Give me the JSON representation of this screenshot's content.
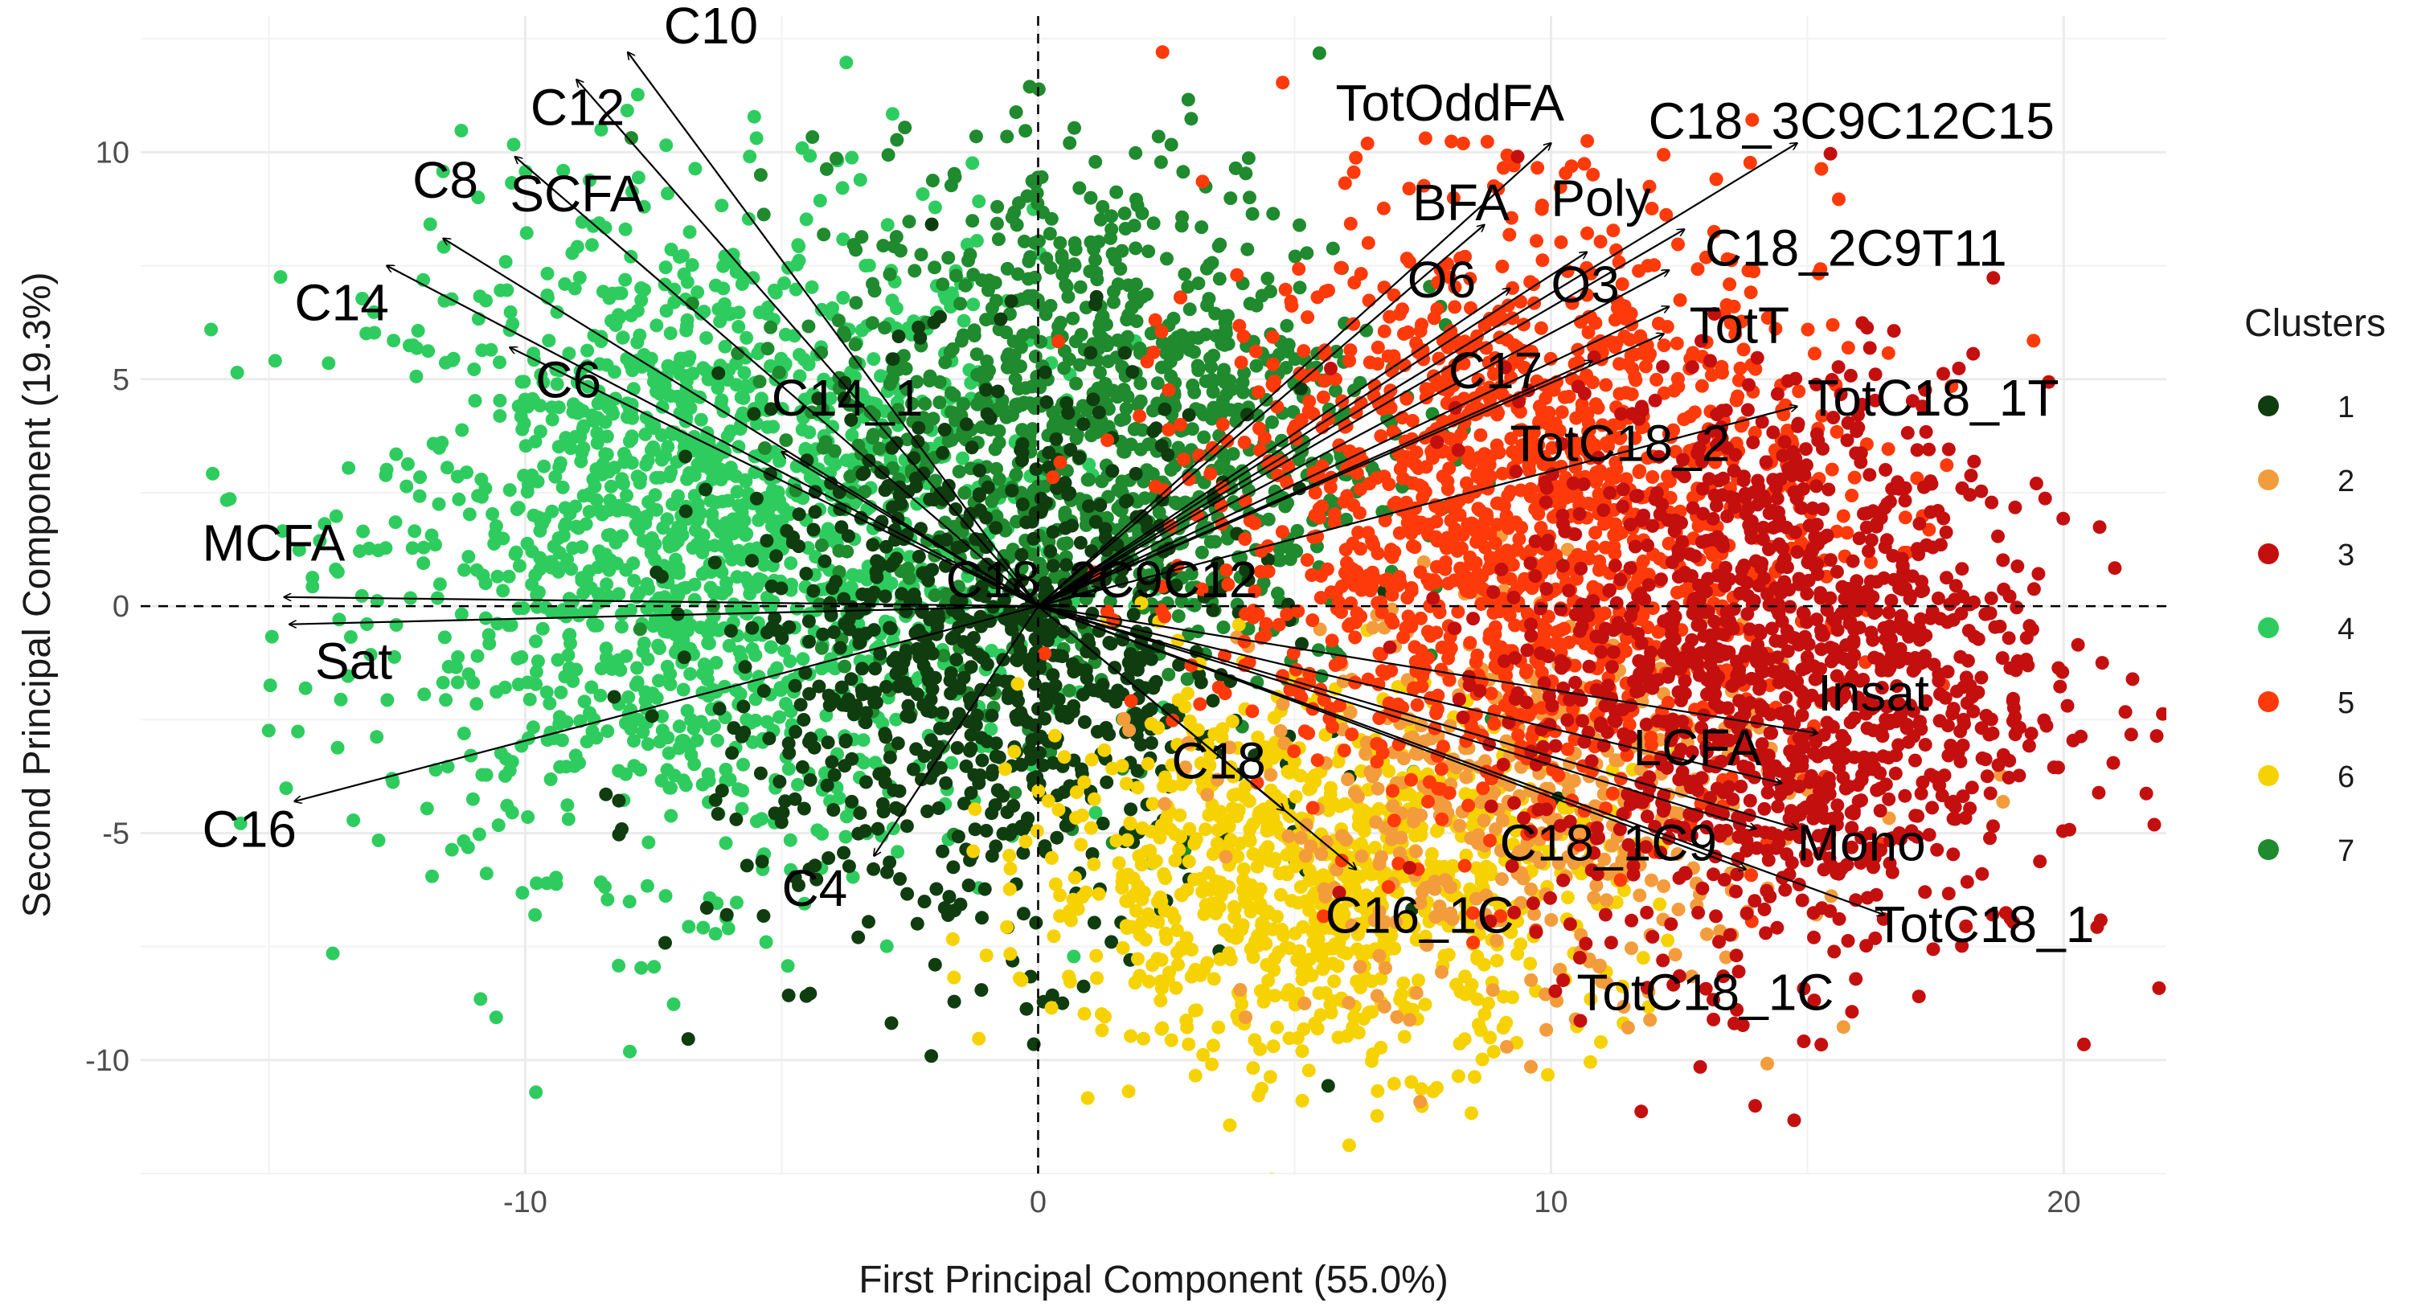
{
  "chart_data": {
    "type": "scatter",
    "subtype": "pca-biplot",
    "xlabel": "First Principal Component (55.0%)",
    "ylabel": "Second Principal Component (19.3%)",
    "xlim": [
      -17.5,
      22
    ],
    "ylim": [
      -12.5,
      13
    ],
    "xticks": [
      -10,
      0,
      10,
      20
    ],
    "yticks": [
      -10,
      -5,
      0,
      5,
      10
    ],
    "xtick_labels": [
      "-10",
      "0",
      "10",
      "20"
    ],
    "ytick_labels": [
      "-10",
      "-5",
      "0",
      "5",
      "10"
    ],
    "reference_lines": {
      "x": 0,
      "y": 0,
      "style": "dashed"
    },
    "legend": {
      "title": "Clusters",
      "position": "right",
      "entries": [
        {
          "label": "1",
          "color": "#0f3d0f"
        },
        {
          "label": "2",
          "color": "#f39c3c"
        },
        {
          "label": "3",
          "color": "#c40f0f"
        },
        {
          "label": "4",
          "color": "#2ecc5e"
        },
        {
          "label": "5",
          "color": "#ff3a0a"
        },
        {
          "label": "6",
          "color": "#f5d200"
        },
        {
          "label": "7",
          "color": "#1f8a2e"
        }
      ]
    },
    "cluster_regions": [
      {
        "cluster": "4",
        "cx": -6.5,
        "cy": 1.5,
        "sx": 3.2,
        "sy": 3.6,
        "n": 1600
      },
      {
        "cluster": "7",
        "cx": 1.2,
        "cy": 4.0,
        "sx": 2.7,
        "sy": 3.0,
        "n": 1100
      },
      {
        "cluster": "1",
        "cx": -1.0,
        "cy": -1.5,
        "sx": 2.6,
        "sy": 3.0,
        "n": 850
      },
      {
        "cluster": "6",
        "cx": 5.5,
        "cy": -6.0,
        "sx": 2.8,
        "sy": 2.0,
        "n": 950
      },
      {
        "cluster": "2",
        "cx": 9.5,
        "cy": -4.5,
        "sx": 2.6,
        "sy": 2.3,
        "n": 450
      },
      {
        "cluster": "5",
        "cx": 9.5,
        "cy": 2.0,
        "sx": 3.0,
        "sy": 3.2,
        "n": 1500
      },
      {
        "cluster": "3",
        "cx": 14.5,
        "cy": -1.5,
        "sx": 2.6,
        "sy": 3.2,
        "n": 1300
      }
    ],
    "loadings": [
      {
        "name": "C10",
        "x": -8.0,
        "y": 12.2,
        "lx": -7.3,
        "ly": 12.4
      },
      {
        "name": "C12",
        "x": -9.0,
        "y": 11.6,
        "lx": -9.9,
        "ly": 10.6
      },
      {
        "name": "C8",
        "x": -10.2,
        "y": 9.9,
        "lx": -12.2,
        "ly": 9.0
      },
      {
        "name": "SCFA",
        "x": -11.6,
        "y": 8.1,
        "lx": -10.3,
        "ly": 8.7
      },
      {
        "name": "C14",
        "x": -12.7,
        "y": 7.5,
        "lx": -14.5,
        "ly": 6.3
      },
      {
        "name": "C6",
        "x": -10.3,
        "y": 5.7,
        "lx": -9.8,
        "ly": 4.6
      },
      {
        "name": "C14_1",
        "x": -5.0,
        "y": 3.4,
        "lx": -5.2,
        "ly": 4.2
      },
      {
        "name": "MCFA",
        "x": -14.7,
        "y": 0.2,
        "lx": -16.3,
        "ly": 1.0
      },
      {
        "name": "Sat",
        "x": -14.6,
        "y": -0.4,
        "lx": -14.1,
        "ly": -1.6
      },
      {
        "name": "C16",
        "x": -14.5,
        "y": -4.3,
        "lx": -16.3,
        "ly": -5.3
      },
      {
        "name": "C4",
        "x": -3.2,
        "y": -5.5,
        "lx": -5.0,
        "ly": -6.6
      },
      {
        "name": "C18_2C9C12",
        "x": 1.2,
        "y": 0.4,
        "lx": -1.8,
        "ly": 0.2
      },
      {
        "name": "C18",
        "x": 4.8,
        "y": -4.5,
        "lx": 2.6,
        "ly": -3.8
      },
      {
        "name": "C16_1C",
        "x": 6.2,
        "y": -5.8,
        "lx": 5.6,
        "ly": -7.2
      },
      {
        "name": "TotOddFA",
        "x": 10.0,
        "y": 10.2,
        "lx": 5.8,
        "ly": 10.7
      },
      {
        "name": "BFA",
        "x": 8.7,
        "y": 8.4,
        "lx": 7.3,
        "ly": 8.5
      },
      {
        "name": "Poly",
        "x": 10.7,
        "y": 7.8,
        "lx": 10.0,
        "ly": 8.6
      },
      {
        "name": "O6",
        "x": 9.2,
        "y": 7.0,
        "lx": 7.2,
        "ly": 6.8
      },
      {
        "name": "O3",
        "x": 12.3,
        "y": 7.4,
        "lx": 10.0,
        "ly": 6.7
      },
      {
        "name": "C18_3C9C12C15",
        "x": 14.8,
        "y": 10.2,
        "lx": 11.9,
        "ly": 10.3
      },
      {
        "name": "C18_2C9T11",
        "x": 12.6,
        "y": 8.3,
        "lx": 13.0,
        "ly": 7.5
      },
      {
        "name": "TotT",
        "x": 12.3,
        "y": 6.6,
        "lx": 12.7,
        "ly": 5.8
      },
      {
        "name": "C17",
        "x": 10.8,
        "y": 5.4,
        "lx": 8.0,
        "ly": 4.8
      },
      {
        "name": "TotC18_2",
        "x": 12.2,
        "y": 6.0,
        "lx": 9.2,
        "ly": 3.2
      },
      {
        "name": "TotC18_1T",
        "x": 14.8,
        "y": 4.4,
        "lx": 15.0,
        "ly": 4.2
      },
      {
        "name": "Insat",
        "x": 15.2,
        "y": -2.8,
        "lx": 15.2,
        "ly": -2.3
      },
      {
        "name": "LCFA",
        "x": 14.5,
        "y": -3.9,
        "lx": 11.6,
        "ly": -3.5
      },
      {
        "name": "C18_1C9",
        "x": 14.0,
        "y": -4.9,
        "lx": 9.0,
        "ly": -5.6
      },
      {
        "name": "Mono",
        "x": 14.8,
        "y": -4.9,
        "lx": 14.8,
        "ly": -5.6
      },
      {
        "name": "TotC18_1",
        "x": 16.5,
        "y": -6.8,
        "lx": 16.3,
        "ly": -7.4
      },
      {
        "name": "TotC18_1C",
        "x": 13.8,
        "y": -5.8,
        "lx": 10.5,
        "ly": -8.9
      }
    ]
  }
}
